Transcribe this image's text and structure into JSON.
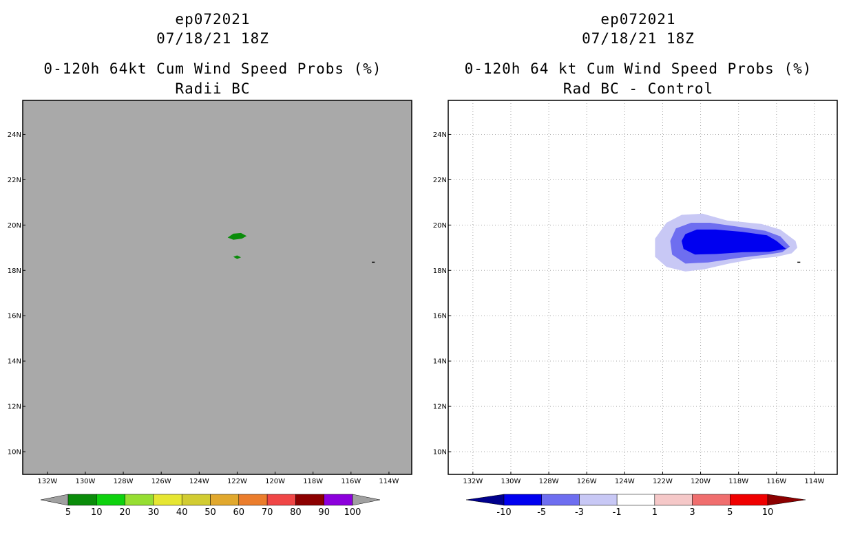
{
  "panels": [
    {
      "storm_id": "ep072021",
      "datetime": "07/18/21 18Z",
      "title": "0-120h 64kt Cum Wind Speed Probs (%)",
      "subtitle": "Radii BC"
    },
    {
      "storm_id": "ep072021",
      "datetime": "07/18/21 18Z",
      "title": "0-120h 64 kt Cum Wind Speed Probs (%)",
      "subtitle": "Rad BC - Control"
    }
  ],
  "chart_data": [
    {
      "type": "heatmap",
      "title": "0-120h 64kt Cum Wind Speed Probs (%)",
      "subtitle": "Radii BC",
      "background": "#a9a9a9",
      "grid": false,
      "xlim": [
        -133.3,
        -112.8
      ],
      "ylim": [
        9.0,
        25.5
      ],
      "x_ticks": [
        -132,
        -130,
        -128,
        -126,
        -124,
        -122,
        -120,
        -118,
        -116,
        -114
      ],
      "x_tick_labels": [
        "132W",
        "130W",
        "128W",
        "126W",
        "124W",
        "122W",
        "120W",
        "118W",
        "116W",
        "114W"
      ],
      "y_ticks": [
        10,
        12,
        14,
        16,
        18,
        20,
        22,
        24
      ],
      "y_tick_labels": [
        "10N",
        "12N",
        "14N",
        "16N",
        "18N",
        "20N",
        "22N",
        "24N"
      ],
      "colorbar": {
        "labels": [
          "5",
          "10",
          "20",
          "30",
          "40",
          "50",
          "60",
          "70",
          "80",
          "90",
          "100"
        ],
        "colors": [
          "#a0a0a0",
          "#0a8c0a",
          "#0ed20e",
          "#96de32",
          "#e6e632",
          "#d2cc32",
          "#e1a82d",
          "#eb7d2c",
          "#f04646",
          "#8c0000",
          "#8c00dc",
          "#a0a0a0"
        ]
      },
      "features": [
        {
          "label": "10",
          "color": "#0a8c0a",
          "polygon": [
            [
              -122.5,
              19.45
            ],
            [
              -122.2,
              19.62
            ],
            [
              -121.8,
              19.65
            ],
            [
              -121.5,
              19.52
            ],
            [
              -121.75,
              19.4
            ],
            [
              -122.2,
              19.35
            ]
          ]
        },
        {
          "label": "10",
          "color": "#0a8c0a",
          "polygon": [
            [
              -122.2,
              18.6
            ],
            [
              -122.0,
              18.66
            ],
            [
              -121.8,
              18.58
            ],
            [
              -122.0,
              18.5
            ]
          ]
        },
        {
          "label": "",
          "color": "#000000",
          "polygon": [
            [
              -114.9,
              18.38
            ],
            [
              -114.75,
              18.38
            ],
            [
              -114.75,
              18.34
            ],
            [
              -114.9,
              18.34
            ]
          ]
        }
      ]
    },
    {
      "type": "heatmap",
      "title": "0-120h 64 kt Cum Wind Speed Probs (%)",
      "subtitle": "Rad BC - Control",
      "background": "#ffffff",
      "grid": true,
      "xlim": [
        -133.3,
        -112.8
      ],
      "ylim": [
        9.0,
        25.5
      ],
      "x_ticks": [
        -132,
        -130,
        -128,
        -126,
        -124,
        -122,
        -120,
        -118,
        -116,
        -114
      ],
      "x_tick_labels": [
        "132W",
        "130W",
        "128W",
        "126W",
        "124W",
        "122W",
        "120W",
        "118W",
        "116W",
        "114W"
      ],
      "y_ticks": [
        10,
        12,
        14,
        16,
        18,
        20,
        22,
        24
      ],
      "y_tick_labels": [
        "10N",
        "12N",
        "14N",
        "16N",
        "18N",
        "20N",
        "22N",
        "24N"
      ],
      "colorbar": {
        "labels": [
          "-10",
          "-5",
          "-3",
          "-1",
          "1",
          "3",
          "5",
          "10"
        ],
        "colors": [
          "#00008c",
          "#0000f0",
          "#6e6ef0",
          "#c8c8f5",
          "#ffffff",
          "#f5c8c8",
          "#f06e6e",
          "#f00000",
          "#8c0000"
        ]
      },
      "features": [
        {
          "label": "-1 to -3",
          "color": "#c8c8f5",
          "polygon": [
            [
              -121.8,
              20.1
            ],
            [
              -121.0,
              20.45
            ],
            [
              -119.9,
              20.5
            ],
            [
              -118.6,
              20.2
            ],
            [
              -116.8,
              20.05
            ],
            [
              -115.8,
              19.8
            ],
            [
              -115.0,
              19.3
            ],
            [
              -114.9,
              19.0
            ],
            [
              -115.2,
              18.75
            ],
            [
              -116.0,
              18.6
            ],
            [
              -117.2,
              18.5
            ],
            [
              -118.5,
              18.3
            ],
            [
              -119.8,
              18.05
            ],
            [
              -120.8,
              17.95
            ],
            [
              -121.8,
              18.15
            ],
            [
              -122.4,
              18.6
            ],
            [
              -122.4,
              19.4
            ]
          ]
        },
        {
          "label": "-3 to -5",
          "color": "#6e6ef0",
          "polygon": [
            [
              -121.3,
              19.85
            ],
            [
              -120.5,
              20.1
            ],
            [
              -119.5,
              20.1
            ],
            [
              -117.8,
              19.9
            ],
            [
              -116.6,
              19.75
            ],
            [
              -115.8,
              19.5
            ],
            [
              -115.3,
              19.05
            ],
            [
              -115.7,
              18.8
            ],
            [
              -116.5,
              18.7
            ],
            [
              -118.0,
              18.55
            ],
            [
              -119.6,
              18.35
            ],
            [
              -120.8,
              18.3
            ],
            [
              -121.5,
              18.7
            ],
            [
              -121.6,
              19.3
            ]
          ]
        },
        {
          "label": "-5 to -10",
          "color": "#0000f0",
          "polygon": [
            [
              -120.8,
              19.6
            ],
            [
              -120.2,
              19.8
            ],
            [
              -119.2,
              19.8
            ],
            [
              -117.8,
              19.7
            ],
            [
              -116.5,
              19.55
            ],
            [
              -116.0,
              19.3
            ],
            [
              -115.5,
              18.95
            ],
            [
              -116.4,
              18.82
            ],
            [
              -117.8,
              18.8
            ],
            [
              -119.2,
              18.72
            ],
            [
              -120.3,
              18.7
            ],
            [
              -120.9,
              18.95
            ],
            [
              -121.0,
              19.3
            ]
          ]
        },
        {
          "label": "",
          "color": "#000000",
          "polygon": [
            [
              -114.9,
              18.38
            ],
            [
              -114.75,
              18.38
            ],
            [
              -114.75,
              18.34
            ],
            [
              -114.9,
              18.34
            ]
          ]
        }
      ]
    }
  ]
}
